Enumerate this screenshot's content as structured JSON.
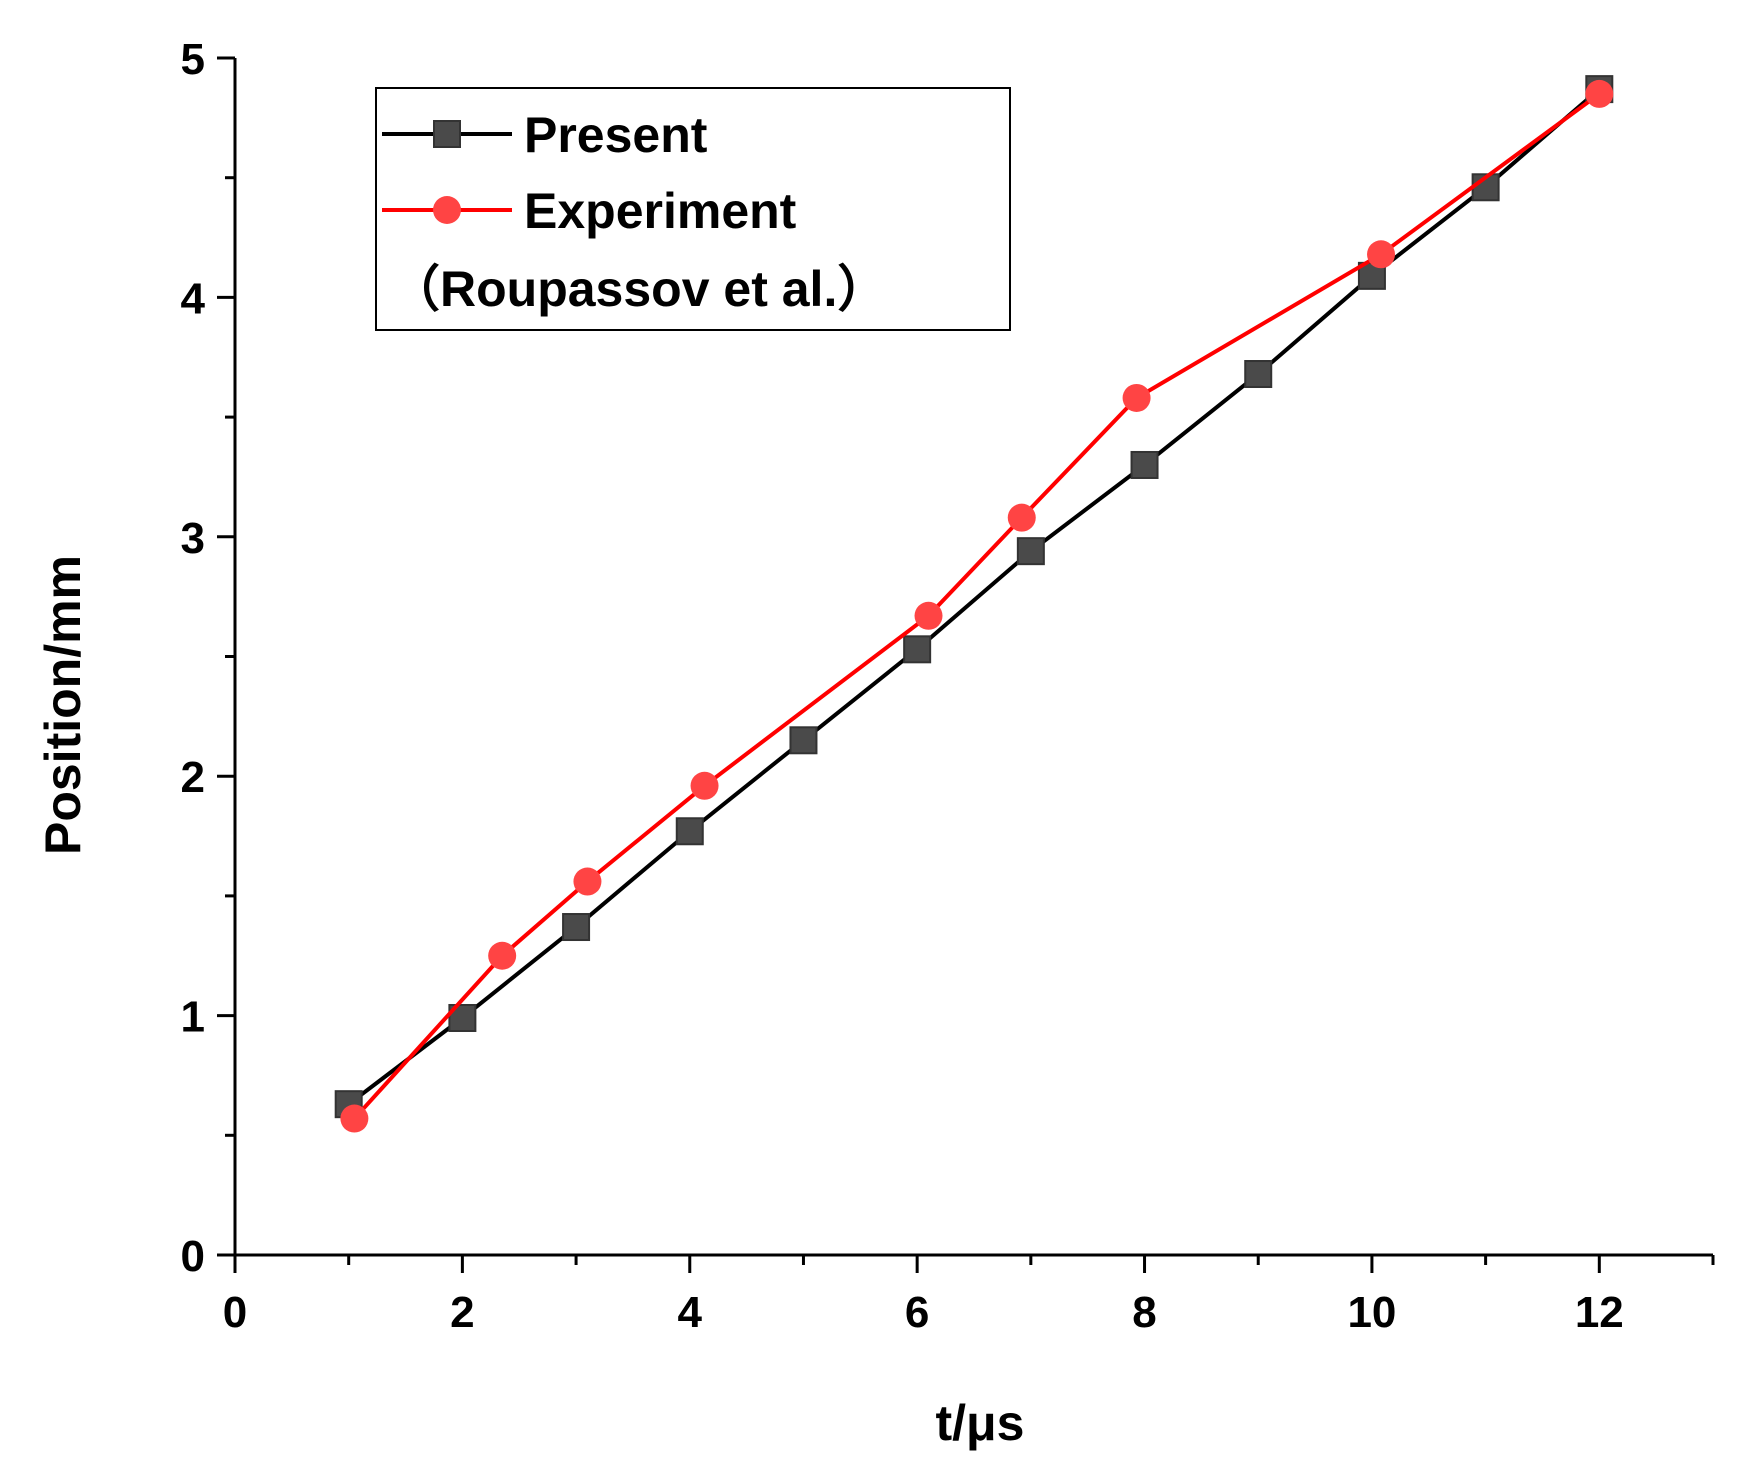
{
  "chart_data": {
    "type": "line",
    "xlabel": "t/μs",
    "ylabel": "Position/mm",
    "xlim": [
      0,
      13
    ],
    "ylim": [
      0,
      5
    ],
    "xticks": [
      0,
      2,
      4,
      6,
      8,
      10,
      12
    ],
    "yticks": [
      0,
      1,
      2,
      3,
      4,
      5
    ],
    "grid": false,
    "legend_position": "top-left",
    "series": [
      {
        "name": "Present",
        "color": "#000000",
        "marker": "square",
        "marker_color": "#4a4a4a",
        "x": [
          1,
          2,
          3,
          4,
          5,
          6,
          7,
          8,
          9,
          10,
          11,
          12
        ],
        "y": [
          0.63,
          0.99,
          1.37,
          1.77,
          2.15,
          2.53,
          2.94,
          3.3,
          3.68,
          4.09,
          4.46,
          4.87
        ]
      },
      {
        "name": "Experiment",
        "color": "#ff0000",
        "marker": "circle",
        "marker_color": "#ff4444",
        "x": [
          1.05,
          2.35,
          3.1,
          4.13,
          6.1,
          6.92,
          7.93,
          10.08,
          12.0
        ],
        "y": [
          0.57,
          1.25,
          1.56,
          1.96,
          2.67,
          3.08,
          3.58,
          4.18,
          4.85
        ]
      }
    ],
    "legend": {
      "entries": [
        "Present",
        "Experiment"
      ],
      "extra_line": "（Roupassov et al.）"
    }
  }
}
